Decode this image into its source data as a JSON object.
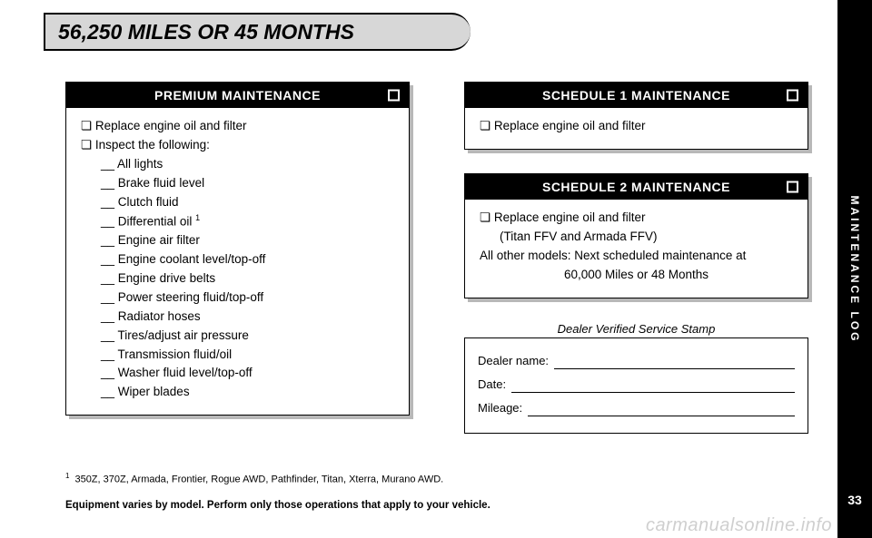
{
  "title": "56,250 MILES OR 45 MONTHS",
  "sidebar_label": "MAINTENANCE LOG",
  "page_number": "33",
  "watermark": "carmanualsonline.info",
  "premium": {
    "header": "PREMIUM MAINTENANCE",
    "items": {
      "a": "Replace engine oil and filter",
      "b": "Inspect the following:",
      "c0": "All lights",
      "c1": "Brake fluid level",
      "c2": "Clutch fluid",
      "c3": "Differential oil ",
      "c3_sup": "1",
      "c4": "Engine air filter",
      "c5": "Engine coolant level/top-off",
      "c6": "Engine drive belts",
      "c7": "Power steering fluid/top-off",
      "c8": "Radiator hoses",
      "c9": "Tires/adjust air pressure",
      "c10": "Transmission fluid/oil",
      "c11": "Washer fluid level/top-off",
      "c12": "Wiper blades"
    }
  },
  "schedule1": {
    "header": "SCHEDULE 1 MAINTENANCE",
    "line1": "Replace engine oil and filter"
  },
  "schedule2": {
    "header": "SCHEDULE 2 MAINTENANCE",
    "line1": "Replace engine oil and filter",
    "line2": "(Titan FFV and Armada FFV)",
    "line3": "All other models: Next scheduled maintenance at",
    "line4": "60,000 Miles or 48 Months"
  },
  "stamp": {
    "title": "Dealer Verified Service Stamp",
    "dealer": "Dealer name:",
    "date": "Date:",
    "mileage": "Mileage:"
  },
  "footnote": {
    "sup": "1",
    "text": "350Z, 370Z, Armada, Frontier, Rogue AWD, Pathfinder, Titan, Xterra, Murano AWD."
  },
  "equip_note": "Equipment varies by model. Perform only those operations that apply to your vehicle."
}
